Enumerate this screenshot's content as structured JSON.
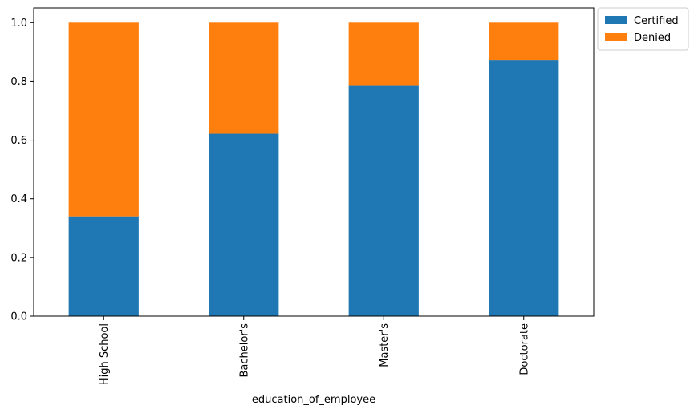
{
  "chart_data": {
    "type": "bar",
    "stacked": true,
    "categories": [
      "High School",
      "Bachelor's",
      "Master's",
      "Doctorate"
    ],
    "series": [
      {
        "name": "Certified",
        "color": "#1f77b4",
        "values": [
          0.34,
          0.622,
          0.786,
          0.872
        ]
      },
      {
        "name": "Denied",
        "color": "#ff7f0e",
        "values": [
          0.66,
          0.378,
          0.214,
          0.128
        ]
      }
    ],
    "xlabel": "education_of_employee",
    "ylabel": "",
    "ylim": [
      0,
      1.05
    ],
    "yticks": [
      "0.0",
      "0.2",
      "0.4",
      "0.6",
      "0.8",
      "1.0"
    ],
    "grid": false,
    "legend_position": "outside-top-right"
  }
}
